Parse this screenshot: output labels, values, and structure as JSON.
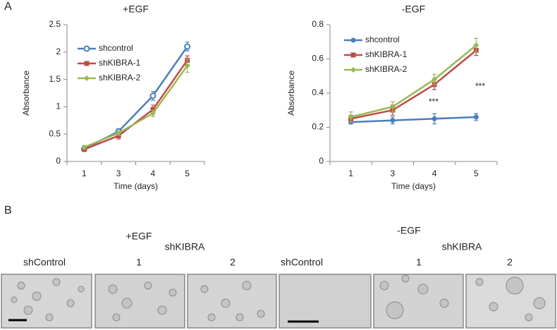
{
  "panel_labels": [
    "A",
    "B"
  ],
  "chart_data": [
    {
      "type": "line",
      "title": "+EGF",
      "xlabel": "Time (days)",
      "ylabel": "Absorbance",
      "categories": [
        "1",
        "3",
        "4",
        "5"
      ],
      "ylim": [
        0,
        2.5
      ],
      "yticks": [
        0,
        0.5,
        1,
        1.5,
        2,
        2.5
      ],
      "grid": false,
      "legend": "upper left",
      "series": [
        {
          "name": "shcontrol",
          "color": "#4a7ebb",
          "marker": "open-circle",
          "values": [
            0.23,
            0.55,
            1.2,
            2.1
          ],
          "errors": [
            0.03,
            0.05,
            0.08,
            0.08
          ]
        },
        {
          "name": "shKIBRA-1",
          "color": "#be4b48",
          "marker": "square",
          "values": [
            0.22,
            0.47,
            0.95,
            1.85
          ],
          "errors": [
            0.03,
            0.06,
            0.08,
            0.08
          ]
        },
        {
          "name": "shKIBRA-2",
          "color": "#98b954",
          "marker": "diamond",
          "values": [
            0.26,
            0.52,
            0.88,
            1.75
          ],
          "errors": [
            0.03,
            0.04,
            0.06,
            0.12
          ]
        }
      ]
    },
    {
      "type": "line",
      "title": "-EGF",
      "xlabel": "Time (days)",
      "ylabel": "Absorbance",
      "categories": [
        "1",
        "3",
        "4",
        "5"
      ],
      "ylim": [
        0,
        0.8
      ],
      "yticks": [
        0,
        0.2,
        0.4,
        0.6,
        0.8
      ],
      "grid": false,
      "legend": "upper left",
      "annotations": [
        "***",
        "***"
      ],
      "series": [
        {
          "name": "shcontrol",
          "color": "#4a7ebb",
          "marker": "circle",
          "values": [
            0.23,
            0.24,
            0.25,
            0.26
          ],
          "errors": [
            0.01,
            0.02,
            0.03,
            0.02
          ]
        },
        {
          "name": "shKIBRA-1",
          "color": "#be4b48",
          "marker": "square",
          "values": [
            0.25,
            0.3,
            0.45,
            0.65
          ],
          "errors": [
            0.02,
            0.03,
            0.03,
            0.03
          ]
        },
        {
          "name": "shKIBRA-2",
          "color": "#98b954",
          "marker": "diamond",
          "values": [
            0.26,
            0.32,
            0.48,
            0.68
          ],
          "errors": [
            0.03,
            0.03,
            0.03,
            0.04
          ]
        }
      ]
    }
  ],
  "panel_b": {
    "left": {
      "title": "+EGF",
      "group": "shKIBRA",
      "columns": [
        "shControl",
        "1",
        "2"
      ]
    },
    "right": {
      "title": "-EGF",
      "group": "shKIBRA",
      "columns": [
        "shControl",
        "1",
        "2"
      ]
    }
  }
}
